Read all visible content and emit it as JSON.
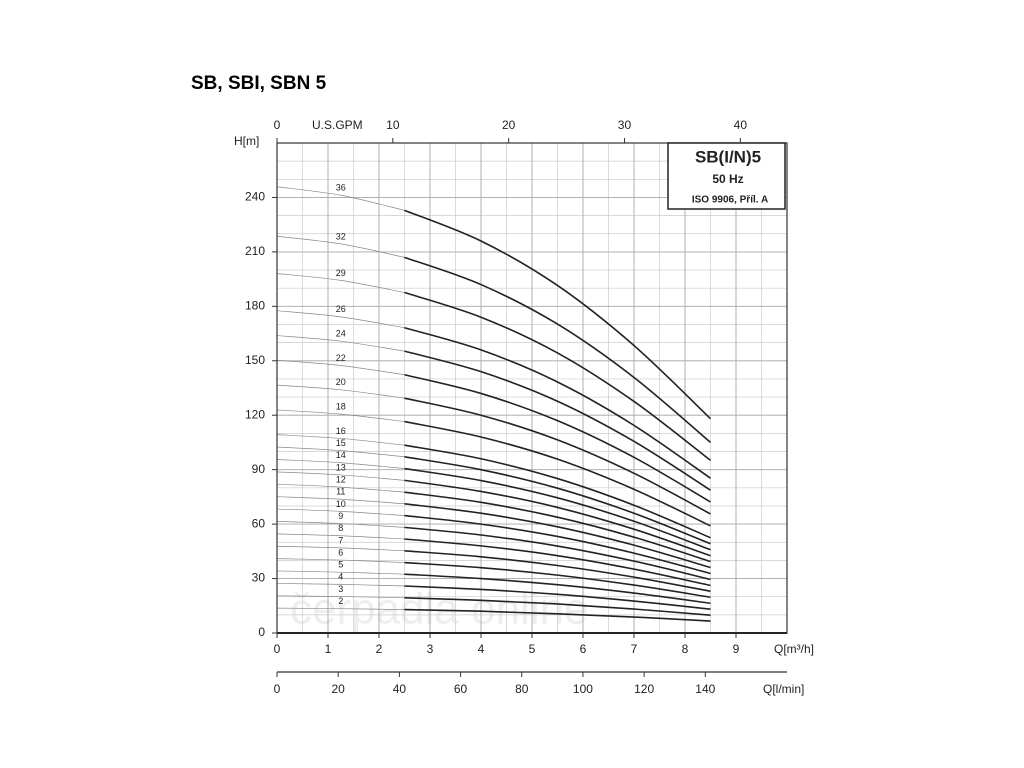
{
  "chart_data": {
    "type": "line",
    "title": "SB, SBI, SBN 5",
    "box_lines": [
      "SB(I/N)5",
      "50 Hz",
      "ISO 9906, Příl. A"
    ],
    "watermark": "čerpadla online",
    "ylabel": "H[m]",
    "xlabel": "Q[m³/h]",
    "top_axis_label": "U.S.GPM",
    "bottom_axis_label": "Q[l/min]",
    "xlim": [
      0,
      10
    ],
    "xticks": [
      0,
      1,
      2,
      3,
      4,
      5,
      6,
      7,
      8,
      9
    ],
    "ylim": [
      0,
      270
    ],
    "yticks": [
      0,
      30,
      60,
      90,
      120,
      150,
      180,
      210,
      240
    ],
    "gpm_lim": [
      0,
      44.03
    ],
    "gpm_ticks": [
      0,
      10,
      20,
      30,
      40
    ],
    "lpm_lim": [
      0,
      166.7
    ],
    "lpm_ticks": [
      0,
      20,
      40,
      60,
      80,
      100,
      120,
      140
    ],
    "grid": true,
    "x": [
      0,
      1.25,
      2.5,
      4,
      5.5,
      7,
      8.5
    ],
    "series": [
      {
        "name": "36",
        "color": "#222",
        "values": [
          245.9,
          241.2,
          232.9,
          216,
          191.5,
          158.4,
          118.1
        ]
      },
      {
        "name": "32",
        "color": "#222",
        "values": [
          218.6,
          214.4,
          207.0,
          192,
          170.2,
          140.8,
          105.0
        ]
      },
      {
        "name": "29",
        "color": "#222",
        "values": [
          198.1,
          194.3,
          187.6,
          174,
          154.3,
          127.6,
          95.1
        ]
      },
      {
        "name": "26",
        "color": "#222",
        "values": [
          177.6,
          174.2,
          168.2,
          156,
          138.3,
          114.4,
          85.3
        ]
      },
      {
        "name": "24",
        "color": "#222",
        "values": [
          163.9,
          160.8,
          155.3,
          144,
          127.7,
          105.6,
          78.7
        ]
      },
      {
        "name": "22",
        "color": "#222",
        "values": [
          150.3,
          147.4,
          142.3,
          132,
          117.0,
          96.8,
          72.2
        ]
      },
      {
        "name": "20",
        "color": "#222",
        "values": [
          136.6,
          134.0,
          129.4,
          120,
          106.4,
          88.0,
          65.6
        ]
      },
      {
        "name": "18",
        "color": "#222",
        "values": [
          122.9,
          120.6,
          116.5,
          108,
          95.8,
          79.2,
          59.0
        ]
      },
      {
        "name": "16",
        "color": "#222",
        "values": [
          109.3,
          107.2,
          103.5,
          96,
          85.1,
          70.4,
          52.5
        ]
      },
      {
        "name": "15",
        "color": "#222",
        "values": [
          102.5,
          100.5,
          97.1,
          90,
          79.8,
          66.0,
          49.2
        ]
      },
      {
        "name": "14",
        "color": "#222",
        "values": [
          95.6,
          93.8,
          90.6,
          84,
          74.5,
          61.6,
          45.9
        ]
      },
      {
        "name": "13",
        "color": "#222",
        "values": [
          88.8,
          87.1,
          84.1,
          78,
          69.2,
          57.2,
          42.6
        ]
      },
      {
        "name": "12",
        "color": "#222",
        "values": [
          82.0,
          80.4,
          77.6,
          72,
          63.8,
          52.8,
          39.4
        ]
      },
      {
        "name": "11",
        "color": "#222",
        "values": [
          75.1,
          73.7,
          71.2,
          66,
          58.5,
          48.4,
          36.1
        ]
      },
      {
        "name": "10",
        "color": "#222",
        "values": [
          68.3,
          67.0,
          64.7,
          60,
          53.2,
          44.0,
          32.8
        ]
      },
      {
        "name": "9",
        "color": "#222",
        "values": [
          61.5,
          60.3,
          58.2,
          54,
          47.9,
          39.6,
          29.5
        ]
      },
      {
        "name": "8",
        "color": "#222",
        "values": [
          54.6,
          53.6,
          51.8,
          48,
          42.6,
          35.2,
          26.2
        ]
      },
      {
        "name": "7",
        "color": "#222",
        "values": [
          47.8,
          46.9,
          45.3,
          42,
          37.2,
          30.8,
          23.0
        ]
      },
      {
        "name": "6",
        "color": "#222",
        "values": [
          41.0,
          40.2,
          38.8,
          36,
          31.9,
          26.4,
          19.7
        ]
      },
      {
        "name": "5",
        "color": "#222",
        "values": [
          34.2,
          33.5,
          32.4,
          30,
          26.6,
          22.0,
          16.4
        ]
      },
      {
        "name": "4",
        "color": "#222",
        "values": [
          27.3,
          26.8,
          25.9,
          24,
          21.3,
          17.6,
          13.1
        ]
      },
      {
        "name": "3",
        "color": "#222",
        "values": [
          20.5,
          20.1,
          19.4,
          18,
          16.0,
          13.2,
          9.8
        ]
      },
      {
        "name": "2",
        "color": "#222",
        "values": [
          13.7,
          13.4,
          12.9,
          12,
          10.6,
          8.8,
          6.6
        ]
      }
    ]
  }
}
